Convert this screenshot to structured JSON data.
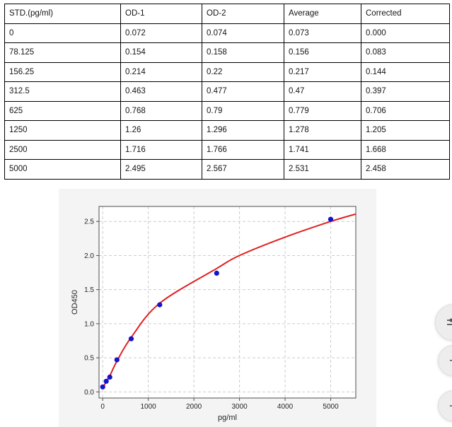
{
  "table": {
    "headers": [
      "STD.(pg/ml)",
      "OD-1",
      "OD-2",
      "Average",
      "Corrected"
    ],
    "rows": [
      [
        "0",
        "0.072",
        "0.074",
        "0.073",
        "0.000"
      ],
      [
        "78.125",
        "0.154",
        "0.158",
        "0.156",
        "0.083"
      ],
      [
        "156.25",
        "0.214",
        "0.22",
        "0.217",
        "0.144"
      ],
      [
        "312.5",
        "0.463",
        "0.477",
        "0.47",
        "0.397"
      ],
      [
        "625",
        "0.768",
        "0.79",
        "0.779",
        "0.706"
      ],
      [
        "1250",
        "1.26",
        "1.296",
        "1.278",
        "1.205"
      ],
      [
        "2500",
        "1.716",
        "1.766",
        "1.741",
        "1.668"
      ],
      [
        "5000",
        "2.495",
        "2.567",
        "2.531",
        "2.458"
      ]
    ]
  },
  "chart_data": {
    "type": "scatter",
    "title": "",
    "xlabel": "pg/ml",
    "ylabel": "OD450",
    "xlim": [
      -80,
      5550
    ],
    "ylim": [
      -0.09,
      2.72
    ],
    "x_ticks": [
      0,
      1000,
      2000,
      3000,
      4000,
      5000
    ],
    "x_tick_labels": [
      "0",
      "1000",
      "2000",
      "3000",
      "4000",
      "5000"
    ],
    "y_ticks": [
      0,
      0.5,
      1,
      1.5,
      2,
      2.5
    ],
    "y_tick_labels": [
      "0.0",
      "0.5",
      "1.0",
      "1.5",
      "2.0",
      "2.5"
    ],
    "grid": "dashed",
    "legend": "none",
    "series": [
      {
        "name": "standard-points",
        "type": "scatter",
        "x": [
          0,
          78.125,
          156.25,
          312.5,
          625,
          1250,
          2500,
          5000
        ],
        "y": [
          0.073,
          0.156,
          0.217,
          0.47,
          0.779,
          1.278,
          1.741,
          2.531
        ],
        "color": "#1414cc",
        "marker_radius": 3.6
      },
      {
        "name": "fit-curve",
        "type": "line",
        "points": [
          [
            0,
            0.055
          ],
          [
            78,
            0.15
          ],
          [
            156,
            0.235
          ],
          [
            312,
            0.45
          ],
          [
            625,
            0.8
          ],
          [
            1250,
            1.3
          ],
          [
            2500,
            1.81
          ],
          [
            3000,
            2.0
          ],
          [
            4000,
            2.27
          ],
          [
            5000,
            2.5
          ],
          [
            5560,
            2.61
          ]
        ],
        "color": "#e02020",
        "width": 2
      }
    ],
    "figure_bg": "#f4f4f4",
    "plot_bg": "#ffffff",
    "grid_color": "#cccccc",
    "spine_color": "#4d4d4d",
    "tick_color": "#262626"
  },
  "floating_controls": {
    "zoom_in_glyph": "+",
    "zoom_out_glyph": "−",
    "background": "#ededed"
  }
}
